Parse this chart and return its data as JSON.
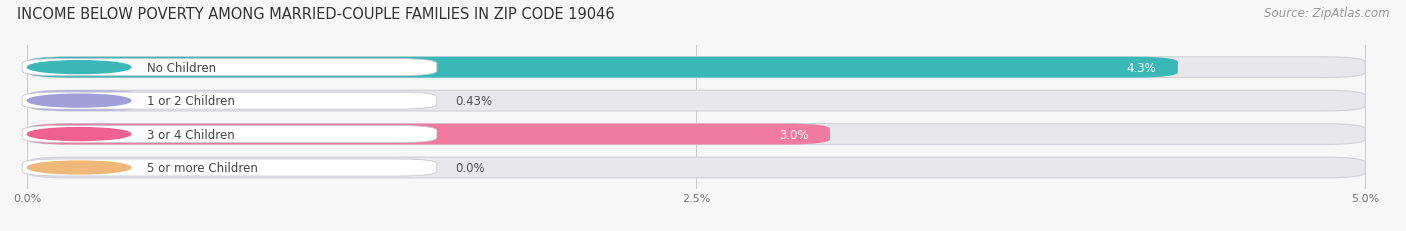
{
  "title": "INCOME BELOW POVERTY AMONG MARRIED-COUPLE FAMILIES IN ZIP CODE 19046",
  "source": "Source: ZipAtlas.com",
  "categories": [
    "No Children",
    "1 or 2 Children",
    "3 or 4 Children",
    "5 or more Children"
  ],
  "values": [
    4.3,
    0.43,
    3.0,
    0.0
  ],
  "bar_colors": [
    "#3ab8b8",
    "#b0aee0",
    "#f07aa0",
    "#f5c896"
  ],
  "label_dot_colors": [
    "#3ab8b8",
    "#a0a0d8",
    "#f06090",
    "#f0b878"
  ],
  "value_labels": [
    "4.3%",
    "0.43%",
    "3.0%",
    "0.0%"
  ],
  "value_label_inside": [
    true,
    false,
    true,
    false
  ],
  "xlim": [
    0,
    5.0
  ],
  "xticks": [
    0.0,
    2.5,
    5.0
  ],
  "xticklabels": [
    "0.0%",
    "2.5%",
    "5.0%"
  ],
  "background_color": "#f7f7f7",
  "bar_bg_color": "#e8e8ec",
  "title_fontsize": 10.5,
  "source_fontsize": 8.5,
  "label_fontsize": 8.5,
  "value_fontsize": 8.5
}
